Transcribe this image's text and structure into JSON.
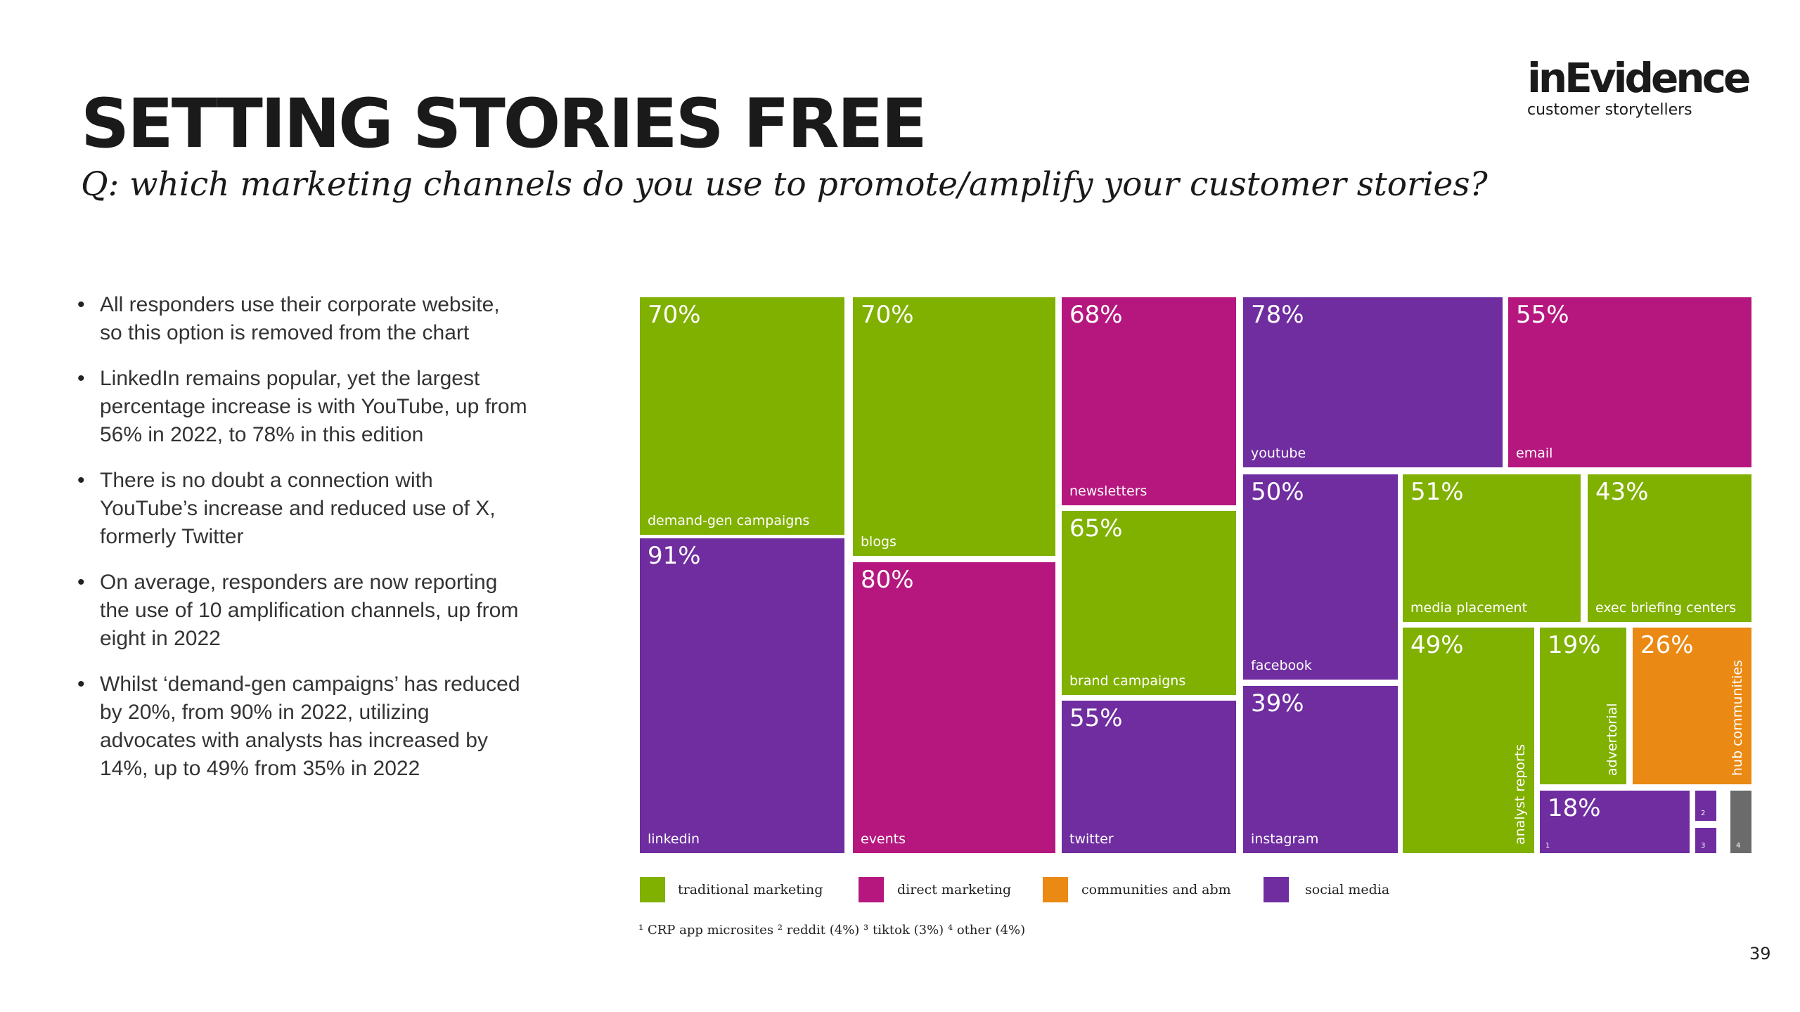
{
  "title": "SETTING STORIES FREE",
  "subtitle": "Q: which marketing channels do you use to promote/amplify your customer stories?",
  "logo": {
    "name": "inEvidence",
    "tagline": "customer storytellers"
  },
  "bullets": [
    "All responders use their corporate website, so this option is removed from the chart",
    "LinkedIn remains popular, yet the largest percentage increase is with YouTube, up from 56% in 2022, to 78% in this edition",
    "There is no doubt a connection with YouTube’s increase and reduced use of X, formerly Twitter",
    "On average, responders are now reporting the use of 10 amplification channels, up from eight in 2022",
    "Whilst ‘demand-gen campaigns’ has reduced by 20%, from 90% in 2022, utilizing advocates with analysts has increased by 14%, up to 49% from 35% in 2022"
  ],
  "colors": {
    "traditional": "#80b000",
    "direct": "#b5177f",
    "communities": "#ea8913",
    "social": "#6f2da0",
    "other": "#6b6b6b"
  },
  "chart_data": {
    "type": "treemap",
    "title": "",
    "legend": [
      {
        "category": "traditional",
        "label": "traditional marketing"
      },
      {
        "category": "direct",
        "label": "direct marketing"
      },
      {
        "category": "communities",
        "label": "communities and abm"
      },
      {
        "category": "social",
        "label": "social media"
      }
    ],
    "items": [
      {
        "label": "demand-gen campaigns",
        "value": 70,
        "value_text": "70%",
        "category": "traditional"
      },
      {
        "label": "linkedin",
        "value": 91,
        "value_text": "91%",
        "category": "social"
      },
      {
        "label": "blogs",
        "value": 70,
        "value_text": "70%",
        "category": "traditional"
      },
      {
        "label": "events",
        "value": 80,
        "value_text": "80%",
        "category": "direct"
      },
      {
        "label": "newsletters",
        "value": 68,
        "value_text": "68%",
        "category": "direct"
      },
      {
        "label": "brand campaigns",
        "value": 65,
        "value_text": "65%",
        "category": "traditional"
      },
      {
        "label": "twitter",
        "value": 55,
        "value_text": "55%",
        "category": "social"
      },
      {
        "label": "youtube",
        "value": 78,
        "value_text": "78%",
        "category": "social"
      },
      {
        "label": "email",
        "value": 55,
        "value_text": "55%",
        "category": "direct"
      },
      {
        "label": "facebook",
        "value": 50,
        "value_text": "50%",
        "category": "social"
      },
      {
        "label": "instagram",
        "value": 39,
        "value_text": "39%",
        "category": "social"
      },
      {
        "label": "media placement",
        "value": 51,
        "value_text": "51%",
        "category": "traditional"
      },
      {
        "label": "exec briefing centers",
        "value": 43,
        "value_text": "43%",
        "category": "traditional"
      },
      {
        "label": "analyst reports",
        "value": 49,
        "value_text": "49%",
        "category": "traditional"
      },
      {
        "label": "advertorial",
        "value": 19,
        "value_text": "19%",
        "category": "traditional"
      },
      {
        "label": "hub communities",
        "value": 26,
        "value_text": "26%",
        "category": "communities"
      },
      {
        "label": "",
        "value": 18,
        "value_text": "18%",
        "category": "social",
        "footnote": "1"
      },
      {
        "label": "",
        "value": 4,
        "value_text": "",
        "category": "social",
        "footnote": "2"
      },
      {
        "label": "",
        "value": 3,
        "value_text": "",
        "category": "social",
        "footnote": "3"
      },
      {
        "label": "",
        "value": 4,
        "value_text": "",
        "category": "other",
        "footnote": "4"
      }
    ]
  },
  "footnote": "¹ CRP app microsites  ² reddit (4%)  ³ tiktok (3%)  ⁴ other (4%)",
  "page_number": "39"
}
